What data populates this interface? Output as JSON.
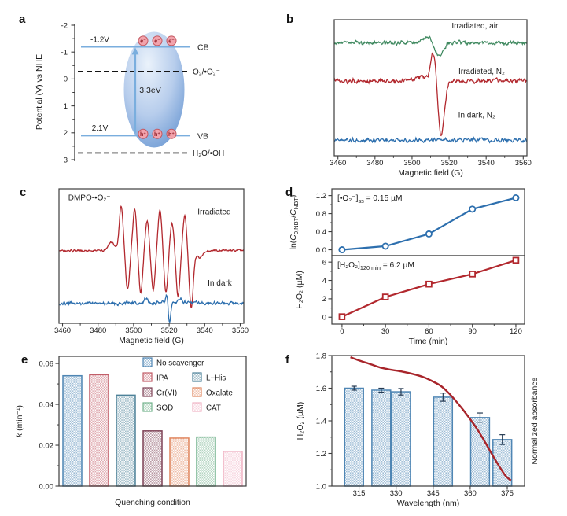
{
  "figure": {
    "background": "#ffffff",
    "panels": {
      "a": {
        "letter": "a"
      },
      "b": {
        "letter": "b"
      },
      "c": {
        "letter": "c"
      },
      "d": {
        "letter": "d"
      },
      "e": {
        "letter": "e"
      },
      "f": {
        "letter": "f"
      }
    }
  },
  "palette": {
    "frame": "#3c3c3c",
    "text": "#1a1a1a",
    "blue": "#2d6fae",
    "red": "#b2282e",
    "green": "#418a61",
    "band_line": "#7aaede",
    "ellipse_inner": "#eaf2fb",
    "ellipse_mid": "#b7cdec",
    "ellipse_outer": "#6f9bd4",
    "carrier_fill": "#f2a3ac",
    "carrier_stroke": "#c2565f",
    "carrier_text": "#8f1d26",
    "error_bar": "#253a52"
  },
  "chart_data": [
    {
      "panel": "a",
      "type": "diagram",
      "subtype": "energy-band-diagram",
      "ylabel": "Potential (V) vs NHE",
      "ylim": [
        -2,
        3
      ],
      "ytick_values": [
        -2,
        -1,
        0,
        1,
        2,
        3
      ],
      "ytick_labels": [
        "-2",
        "-1",
        "0",
        "1",
        "2",
        "3"
      ],
      "conduction_band": {
        "potential": -1.2,
        "edge_label": "-1.2V",
        "band_label": "CB"
      },
      "valence_band": {
        "potential": 2.1,
        "edge_label": "2.1V",
        "band_label": "VB"
      },
      "band_gap_label": "3.3eV",
      "redox_couples": [
        {
          "potential": -0.28,
          "label": "O₂/•O₂⁻"
        },
        {
          "potential": 2.75,
          "label": "H₂O/•OH"
        }
      ],
      "electrons": {
        "count": 3,
        "label": "e⁻"
      },
      "holes": {
        "count": 3,
        "label": "h⁺"
      }
    },
    {
      "panel": "b",
      "type": "line",
      "subtype": "epr-spectra",
      "xlabel": "Magnetic field (G)",
      "xlim": [
        3458,
        3562
      ],
      "xtick_values": [
        3460,
        3480,
        3500,
        3520,
        3540,
        3560
      ],
      "xtick_labels": [
        "3460",
        "3480",
        "3500",
        "3520",
        "3540",
        "3560"
      ],
      "series": [
        {
          "name": "Irradiated, air",
          "color": "#418a61",
          "baseline": 0.83,
          "noise": 0.021,
          "features": [
            {
              "center": 3508,
              "width": 3.5,
              "amp": 0.045
            },
            {
              "center": 3514.5,
              "width": 3,
              "amp": -0.1
            }
          ],
          "label_pos": [
            0.73,
            0.065
          ]
        },
        {
          "name": "Irradiated, N₂",
          "color": "#b2282e",
          "baseline": 0.55,
          "noise": 0.024,
          "features": [
            {
              "center": 3506,
              "width": 5,
              "amp": 0.03
            },
            {
              "center": 3511.5,
              "width": 2,
              "amp": 0.2
            },
            {
              "center": 3515.8,
              "width": 2.3,
              "amp": -0.4
            }
          ],
          "label_pos": [
            0.765,
            0.4
          ]
        },
        {
          "name": "In dark, N₂",
          "color": "#2d6fae",
          "baseline": 0.115,
          "noise": 0.021,
          "features": [],
          "label_pos": [
            0.74,
            0.72
          ]
        }
      ]
    },
    {
      "panel": "c",
      "type": "line",
      "subtype": "epr-spectra",
      "annotation": "DMPO-•O₂⁻",
      "xlabel": "Magnetic field (G)",
      "xlim": [
        3458,
        3562
      ],
      "xtick_values": [
        3460,
        3480,
        3500,
        3520,
        3540,
        3560
      ],
      "xtick_labels": [
        "3460",
        "3480",
        "3500",
        "3520",
        "3540",
        "3560"
      ],
      "series": [
        {
          "name": "Irradiated",
          "color": "#b2282e",
          "baseline": 0.54,
          "noise": 0.012,
          "features": [
            {
              "center": 3487.5,
              "width": 2.5,
              "amp": 0.06
            },
            {
              "center": 3493,
              "width": 1.5,
              "amp": 0.33
            },
            {
              "center": 3496.6,
              "width": 1.5,
              "amp": -0.29
            },
            {
              "center": 3500.6,
              "width": 1.5,
              "amp": 0.31
            },
            {
              "center": 3504,
              "width": 1.5,
              "amp": -0.31
            },
            {
              "center": 3507.6,
              "width": 1.5,
              "amp": 0.22
            },
            {
              "center": 3511,
              "width": 1.5,
              "amp": -0.29
            },
            {
              "center": 3514.8,
              "width": 1.5,
              "amp": 0.3
            },
            {
              "center": 3518.2,
              "width": 1.5,
              "amp": -0.31
            },
            {
              "center": 3521.6,
              "width": 1.5,
              "amp": 0.21
            },
            {
              "center": 3525,
              "width": 1.5,
              "amp": -0.34
            },
            {
              "center": 3528.8,
              "width": 1.5,
              "amp": 0.26
            },
            {
              "center": 3532.4,
              "width": 1.6,
              "amp": -0.42
            },
            {
              "center": 3537,
              "width": 2.5,
              "amp": -0.05
            }
          ],
          "label_pos": [
            0.84,
            0.19
          ]
        },
        {
          "name": "In dark",
          "color": "#2d6fae",
          "baseline": 0.15,
          "noise": 0.019,
          "features": [
            {
              "center": 3507,
              "width": 1.2,
              "amp": 0.04
            },
            {
              "center": 3518.6,
              "width": 0.8,
              "amp": 0.07
            },
            {
              "center": 3520.2,
              "width": 0.9,
              "amp": -0.15
            },
            {
              "center": 3526,
              "width": 1.5,
              "amp": 0.03
            }
          ],
          "label_pos": [
            0.87,
            0.72
          ]
        }
      ]
    },
    {
      "panel": "d",
      "type": "line",
      "subtype": "kinetics-dual-panel",
      "xlabel": "Time (min)",
      "xlim": [
        -7,
        126
      ],
      "xtick_values": [
        0,
        30,
        60,
        90,
        120
      ],
      "xtick_labels": [
        "0",
        "30",
        "60",
        "90",
        "120"
      ],
      "subplots": [
        {
          "ylabel": "ln(*C*_{0,NBT}/*C*_{NBT})",
          "ylim": [
            -0.13,
            1.35
          ],
          "ytick_values": [
            0.0,
            0.4,
            0.8,
            1.2
          ],
          "ytick_labels": [
            "0.0",
            "0.4",
            "0.8",
            "1.2"
          ],
          "annotation": "[•O₂⁻]_{ss} = 0.15 µM",
          "marker": "circle",
          "color": "#2d6fae",
          "x": [
            0,
            30,
            60,
            90,
            120
          ],
          "y": [
            0.0,
            0.08,
            0.35,
            0.9,
            1.15
          ]
        },
        {
          "ylabel": "H₂O₂ (µM)",
          "ylim": [
            -0.75,
            6.7
          ],
          "ytick_values": [
            0,
            2,
            4,
            6
          ],
          "ytick_labels": [
            "0",
            "2",
            "4",
            "6"
          ],
          "annotation": "[H₂O₂]_{120 min} = 6.2 µM",
          "marker": "square",
          "color": "#b2282e",
          "x": [
            0,
            30,
            60,
            90,
            120
          ],
          "y": [
            0.05,
            2.2,
            3.6,
            4.7,
            6.2
          ]
        }
      ]
    },
    {
      "panel": "e",
      "type": "bar",
      "ylabel": "*k* (min⁻¹)",
      "xlabel": "Quenching condition",
      "ylim": [
        0,
        0.0635
      ],
      "ytick_values": [
        0,
        0.02,
        0.04,
        0.06
      ],
      "ytick_labels": [
        "0.00",
        "0.02",
        "0.04",
        "0.06"
      ],
      "categories": [
        "No scavenger",
        "IPA",
        "L−His",
        "Cr(VI)",
        "Oxalate",
        "SOD",
        "CAT"
      ],
      "values": [
        0.054,
        0.0545,
        0.0445,
        0.027,
        0.0235,
        0.024,
        0.017
      ],
      "colors": [
        "#4f86b4",
        "#c25e69",
        "#4e8299",
        "#7e4256",
        "#e0865e",
        "#74b38e",
        "#f0b3c4"
      ],
      "legend_rows": [
        [
          "No scavenger"
        ],
        [
          "IPA",
          "L−His"
        ],
        [
          "Cr(VI)",
          "Oxalate"
        ],
        [
          "SOD",
          "CAT"
        ]
      ]
    },
    {
      "panel": "f",
      "type": "bar-line",
      "ylabel": "H₂O₂ (µM)",
      "ylabel_right": "Normalized absorbance",
      "xlabel": "Wavelength (nm)",
      "xlim": [
        304,
        382
      ],
      "ylim": [
        1.0,
        1.8
      ],
      "xtick_values": [
        315,
        330,
        345,
        360,
        375
      ],
      "xtick_labels": [
        "315",
        "330",
        "345",
        "360",
        "375"
      ],
      "ytick_values": [
        1.0,
        1.2,
        1.4,
        1.6,
        1.8
      ],
      "ytick_labels": [
        "1.0",
        "1.2",
        "1.4",
        "1.6",
        "1.8"
      ],
      "bars": {
        "color": "#4f86b4",
        "width_nm": 7.6,
        "x": [
          313,
          324,
          332,
          349,
          364,
          373
        ],
        "values": [
          1.6,
          1.588,
          1.578,
          1.545,
          1.42,
          1.285
        ],
        "errors": [
          0.012,
          0.012,
          0.02,
          0.025,
          0.028,
          0.03
        ]
      },
      "curve": {
        "color": "#a8252b",
        "points": [
          [
            311.5,
            1.79
          ],
          [
            315,
            1.77
          ],
          [
            318,
            1.755
          ],
          [
            321,
            1.74
          ],
          [
            324,
            1.725
          ],
          [
            327,
            1.715
          ],
          [
            330,
            1.708
          ],
          [
            333,
            1.7
          ],
          [
            336,
            1.69
          ],
          [
            339,
            1.678
          ],
          [
            342,
            1.662
          ],
          [
            345,
            1.64
          ],
          [
            348,
            1.615
          ],
          [
            351,
            1.575
          ],
          [
            354,
            1.525
          ],
          [
            357,
            1.47
          ],
          [
            360,
            1.41
          ],
          [
            363,
            1.345
          ],
          [
            366,
            1.27
          ],
          [
            369,
            1.19
          ],
          [
            372,
            1.115
          ],
          [
            374.5,
            1.06
          ],
          [
            376.5,
            1.035
          ]
        ]
      }
    }
  ]
}
